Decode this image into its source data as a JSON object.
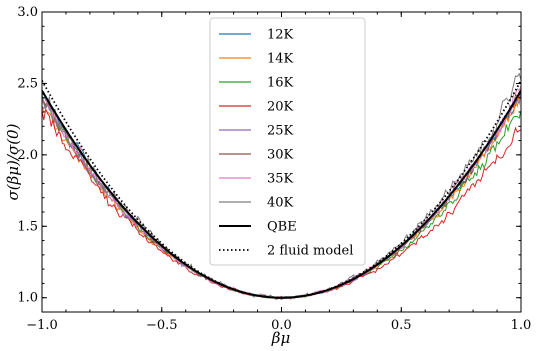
{
  "chart_data": {
    "type": "line",
    "xlabel": "βμ",
    "ylabel": "σ(βμ)/σ(0)",
    "xlim": [
      -1.0,
      1.0
    ],
    "ylim": [
      0.9,
      3.0
    ],
    "xticks": [
      "−1.0",
      "−0.5",
      "0.0",
      "0.5",
      "1.0"
    ],
    "xtick_values": [
      -1.0,
      -0.5,
      0.0,
      0.5,
      1.0
    ],
    "yticks": [
      "1.0",
      "1.5",
      "2.0",
      "2.5",
      "3.0"
    ],
    "ytick_values": [
      1.0,
      1.5,
      2.0,
      2.5,
      3.0
    ],
    "grid": false,
    "legend_position": "top-center",
    "series": [
      {
        "name": "12K",
        "color": "#1f77b4",
        "style": "noisy",
        "coef": 1.43,
        "asym": -0.02,
        "noise": 0.03
      },
      {
        "name": "14K",
        "color": "#ff7f0e",
        "style": "noisy",
        "coef": 1.38,
        "asym": 0.03,
        "noise": 0.035
      },
      {
        "name": "16K",
        "color": "#2ca02c",
        "style": "noisy",
        "coef": 1.36,
        "asym": -0.04,
        "noise": 0.035
      },
      {
        "name": "20K",
        "color": "#d62728",
        "style": "noisy",
        "coef": 1.26,
        "asym": -0.06,
        "noise": 0.04
      },
      {
        "name": "25K",
        "color": "#9467bd",
        "style": "noisy",
        "coef": 1.4,
        "asym": 0.02,
        "noise": 0.04
      },
      {
        "name": "30K",
        "color": "#8c564b",
        "style": "noisy",
        "coef": 1.42,
        "asym": 0.01,
        "noise": 0.045
      },
      {
        "name": "35K",
        "color": "#e377c2",
        "style": "noisy",
        "coef": 1.44,
        "asym": 0.03,
        "noise": 0.05
      },
      {
        "name": "40K",
        "color": "#7f7f7f",
        "style": "noisy",
        "coef": 1.48,
        "asym": 0.05,
        "noise": 0.06
      },
      {
        "name": "QBE",
        "color": "#000000",
        "style": "solid",
        "coef": 1.45,
        "asym": 0.0,
        "noise": 0
      },
      {
        "name": "2 fluid model",
        "color": "#000000",
        "style": "dotted",
        "coef": 1.52,
        "asym": 0.0,
        "noise": 0
      }
    ]
  }
}
